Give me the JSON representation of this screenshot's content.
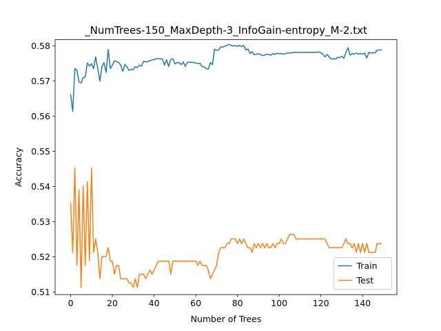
{
  "chart_data": {
    "type": "line",
    "title": "_NumTrees-150_MaxDepth-3_InfoGain-entropy_M-2.txt",
    "xlabel": "Number of Trees",
    "ylabel": "Accuracy",
    "xlim": [
      -7.45,
      156.45
    ],
    "ylim": [
      0.5093,
      0.5817
    ],
    "xticks": [
      0,
      20,
      40,
      60,
      80,
      100,
      120,
      140
    ],
    "yticks": [
      0.51,
      0.52,
      0.53,
      0.54,
      0.55,
      0.56,
      0.57,
      0.58
    ],
    "grid": false,
    "legend_position": "lower-right",
    "colors": {
      "Train": "#1f77b4",
      "Test": "#ff7f0e"
    },
    "series": [
      {
        "name": "Train",
        "x": [
          0,
          1,
          2,
          3,
          4,
          5,
          6,
          7,
          8,
          9,
          10,
          11,
          12,
          13,
          14,
          15,
          16,
          17,
          18,
          19,
          20,
          21,
          22,
          23,
          24,
          25,
          26,
          27,
          28,
          29,
          30,
          31,
          32,
          33,
          34,
          35,
          36,
          37,
          38,
          39,
          40,
          41,
          42,
          43,
          44,
          45,
          46,
          47,
          48,
          49,
          50,
          51,
          52,
          53,
          54,
          55,
          56,
          57,
          58,
          59,
          60,
          61,
          62,
          63,
          64,
          65,
          66,
          67,
          68,
          69,
          70,
          71,
          72,
          73,
          74,
          75,
          76,
          77,
          78,
          79,
          80,
          81,
          82,
          83,
          84,
          85,
          86,
          87,
          88,
          89,
          90,
          91,
          92,
          93,
          94,
          95,
          96,
          97,
          98,
          99,
          100,
          101,
          102,
          103,
          104,
          105,
          106,
          107,
          108,
          109,
          110,
          111,
          112,
          113,
          114,
          115,
          116,
          117,
          118,
          119,
          120,
          121,
          122,
          123,
          124,
          125,
          126,
          127,
          128,
          129,
          130,
          131,
          132,
          133,
          134,
          135,
          136,
          137,
          138,
          139,
          140,
          141,
          142,
          143,
          144,
          145,
          146,
          147,
          148,
          149
        ],
        "values": [
          0.5661,
          0.5613,
          0.5735,
          0.573,
          0.5697,
          0.5694,
          0.571,
          0.5711,
          0.5751,
          0.5742,
          0.5749,
          0.5735,
          0.5768,
          0.5735,
          0.5699,
          0.574,
          0.5752,
          0.5724,
          0.5789,
          0.5735,
          0.5745,
          0.5757,
          0.5755,
          0.5752,
          0.5745,
          0.5727,
          0.5747,
          0.574,
          0.573,
          0.5733,
          0.5732,
          0.5741,
          0.5738,
          0.5745,
          0.5742,
          0.5756,
          0.5754,
          0.5755,
          0.5757,
          0.576,
          0.576,
          0.5763,
          0.5763,
          0.5763,
          0.5762,
          0.5745,
          0.576,
          0.5741,
          0.5761,
          0.5763,
          0.5749,
          0.5752,
          0.5752,
          0.5746,
          0.5754,
          0.5741,
          0.5753,
          0.5753,
          0.5753,
          0.5752,
          0.5751,
          0.5749,
          0.575,
          0.5741,
          0.574,
          0.5735,
          0.5733,
          0.5752,
          0.5746,
          0.579,
          0.5787,
          0.5788,
          0.5797,
          0.5796,
          0.5799,
          0.5801,
          0.5804,
          0.5801,
          0.5799,
          0.58,
          0.5798,
          0.5801,
          0.5797,
          0.5801,
          0.5788,
          0.5791,
          0.5778,
          0.5783,
          0.5774,
          0.5776,
          0.5777,
          0.5775,
          0.5772,
          0.5773,
          0.5776,
          0.5775,
          0.5773,
          0.5778,
          0.5775,
          0.5779,
          0.5777,
          0.5778,
          0.5776,
          0.5777,
          0.578,
          0.5779,
          0.578,
          0.5781,
          0.5781,
          0.5781,
          0.5781,
          0.5781,
          0.5781,
          0.5781,
          0.5781,
          0.5781,
          0.5781,
          0.5781,
          0.5782,
          0.5782,
          0.578,
          0.5776,
          0.5768,
          0.5775,
          0.5768,
          0.5762,
          0.5763,
          0.5762,
          0.5767,
          0.5766,
          0.577,
          0.5764,
          0.5781,
          0.5794,
          0.5773,
          0.5778,
          0.5776,
          0.5779,
          0.5776,
          0.5778,
          0.5776,
          0.5779,
          0.5765,
          0.5781,
          0.5779,
          0.578,
          0.578,
          0.5787,
          0.5788,
          0.5788
        ]
      },
      {
        "name": "Test",
        "x": [
          0,
          1,
          2,
          3,
          4,
          5,
          6,
          7,
          8,
          9,
          10,
          11,
          12,
          13,
          14,
          15,
          16,
          17,
          18,
          19,
          20,
          21,
          22,
          23,
          24,
          25,
          26,
          27,
          28,
          29,
          30,
          31,
          32,
          33,
          34,
          35,
          36,
          37,
          38,
          39,
          40,
          41,
          42,
          43,
          44,
          45,
          46,
          47,
          48,
          49,
          50,
          51,
          52,
          53,
          54,
          55,
          56,
          57,
          58,
          59,
          60,
          61,
          62,
          63,
          64,
          65,
          66,
          67,
          68,
          69,
          70,
          71,
          72,
          73,
          74,
          75,
          76,
          77,
          78,
          79,
          80,
          81,
          82,
          83,
          84,
          85,
          86,
          87,
          88,
          89,
          90,
          91,
          92,
          93,
          94,
          95,
          96,
          97,
          98,
          99,
          100,
          101,
          102,
          103,
          104,
          105,
          106,
          107,
          108,
          109,
          110,
          111,
          112,
          113,
          114,
          115,
          116,
          117,
          118,
          119,
          120,
          121,
          122,
          123,
          124,
          125,
          126,
          127,
          128,
          129,
          130,
          131,
          132,
          133,
          134,
          135,
          136,
          137,
          138,
          139,
          140,
          141,
          142,
          143,
          144,
          145,
          146,
          147,
          148,
          149
        ],
        "values": [
          0.5353,
          0.5213,
          0.5452,
          0.5176,
          0.5391,
          0.5113,
          0.5402,
          0.5176,
          0.5414,
          0.519,
          0.5452,
          0.5213,
          0.5251,
          0.5213,
          0.5138,
          0.5201,
          0.5201,
          0.5201,
          0.5226,
          0.5188,
          0.5188,
          0.5151,
          0.5176,
          0.5176,
          0.5138,
          0.5138,
          0.5138,
          0.5138,
          0.5126,
          0.5126,
          0.5113,
          0.5138,
          0.5113,
          0.5151,
          0.5151,
          0.5151,
          0.5138,
          0.5151,
          0.5163,
          0.5151,
          0.5163,
          0.5176,
          0.5188,
          0.5188,
          0.5188,
          0.5188,
          0.5188,
          0.5188,
          0.5151,
          0.5188,
          0.5188,
          0.5188,
          0.5188,
          0.5188,
          0.5188,
          0.5188,
          0.5188,
          0.5188,
          0.5188,
          0.5188,
          0.5188,
          0.5176,
          0.5188,
          0.5176,
          0.5176,
          0.5176,
          0.5163,
          0.5138,
          0.5151,
          0.5163,
          0.5176,
          0.5213,
          0.5226,
          0.5226,
          0.5226,
          0.5238,
          0.5238,
          0.5251,
          0.5251,
          0.5251,
          0.5238,
          0.5251,
          0.5238,
          0.5251,
          0.5238,
          0.5226,
          0.5226,
          0.5213,
          0.5238,
          0.5226,
          0.5238,
          0.5226,
          0.5238,
          0.5226,
          0.5238,
          0.5226,
          0.5226,
          0.5238,
          0.5226,
          0.5238,
          0.5238,
          0.5251,
          0.5238,
          0.5238,
          0.5251,
          0.5264,
          0.5264,
          0.5264,
          0.5251,
          0.5251,
          0.5251,
          0.5251,
          0.5251,
          0.5251,
          0.5251,
          0.5251,
          0.5251,
          0.5251,
          0.5251,
          0.5251,
          0.5251,
          0.5251,
          0.5251,
          0.5238,
          0.5226,
          0.5226,
          0.5226,
          0.5226,
          0.5226,
          0.5226,
          0.5226,
          0.5238,
          0.5251,
          0.5238,
          0.5238,
          0.5226,
          0.5238,
          0.5213,
          0.5238,
          0.5213,
          0.5238,
          0.5213,
          0.5238,
          0.5213,
          0.5213,
          0.5213,
          0.5213,
          0.5238,
          0.5238,
          0.5238
        ]
      }
    ]
  }
}
